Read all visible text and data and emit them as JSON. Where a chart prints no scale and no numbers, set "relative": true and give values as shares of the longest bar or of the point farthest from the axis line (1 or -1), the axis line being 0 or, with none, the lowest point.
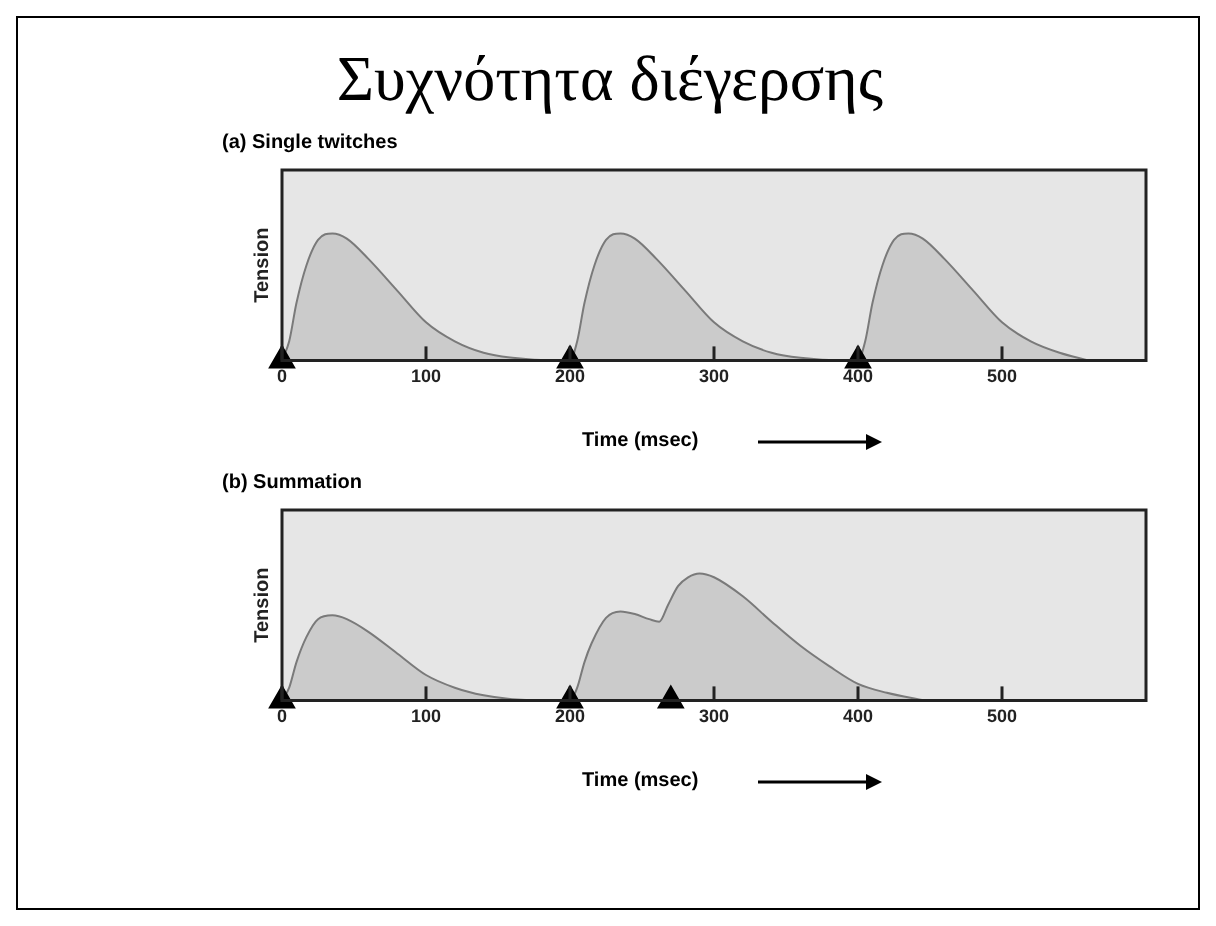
{
  "chart_data": [
    {
      "type": "area",
      "title": "Συχνότητα διέγερσης",
      "subtitle": "(a) Single twitches",
      "xlabel": "Time (msec)",
      "ylabel": "Tension",
      "relative": true,
      "legend": false,
      "grid": false,
      "xlim": [
        0,
        600
      ],
      "xticks": [
        0,
        100,
        200,
        300,
        400,
        500
      ],
      "x": [
        0,
        5,
        10,
        17,
        25,
        35,
        45,
        60,
        80,
        100,
        120,
        140,
        160,
        190,
        200,
        205,
        210,
        217,
        225,
        235,
        245,
        260,
        280,
        300,
        320,
        340,
        360,
        390,
        400,
        405,
        410,
        417,
        425,
        435,
        445,
        460,
        480,
        500,
        520,
        540,
        560
      ],
      "series": [
        {
          "color": "#7a7a7a",
          "values": [
            0,
            0.15,
            0.45,
            0.75,
            0.95,
            1,
            0.96,
            0.8,
            0.55,
            0.3,
            0.15,
            0.06,
            0.02,
            0,
            0,
            0.15,
            0.45,
            0.75,
            0.95,
            1,
            0.96,
            0.8,
            0.55,
            0.3,
            0.15,
            0.06,
            0.02,
            0,
            0,
            0.15,
            0.45,
            0.75,
            0.95,
            1,
            0.96,
            0.8,
            0.55,
            0.3,
            0.15,
            0.06,
            0
          ]
        },
        {
          "type": "scatter",
          "marker": "triangle",
          "color": "#000000",
          "x": [
            0,
            200,
            400
          ],
          "values": [
            0,
            0,
            0
          ]
        }
      ],
      "marker": "none"
    },
    {
      "type": "area",
      "subtitle": "(b) Summation",
      "xlabel": "Time (msec)",
      "ylabel": "Tension",
      "relative": true,
      "legend": false,
      "grid": false,
      "xlim": [
        0,
        600
      ],
      "xticks": [
        0,
        100,
        200,
        300,
        400,
        500
      ],
      "x": [
        0,
        5,
        10,
        17,
        25,
        35,
        45,
        60,
        80,
        100,
        120,
        140,
        160,
        190,
        200,
        205,
        210,
        215,
        225,
        235,
        245,
        255,
        262,
        268,
        275,
        282,
        290,
        300,
        320,
        340,
        360,
        380,
        400,
        420,
        446
      ],
      "series": [
        {
          "color": "#7a7a7a",
          "values": [
            0,
            0.1,
            0.3,
            0.5,
            0.64,
            0.67,
            0.64,
            0.54,
            0.37,
            0.2,
            0.1,
            0.04,
            0.01,
            0,
            0,
            0.1,
            0.3,
            0.45,
            0.65,
            0.7,
            0.68,
            0.64,
            0.62,
            0.75,
            0.9,
            0.97,
            1,
            0.97,
            0.82,
            0.62,
            0.43,
            0.27,
            0.13,
            0.06,
            0
          ]
        },
        {
          "type": "scatter",
          "marker": "triangle",
          "color": "#000000",
          "x": [
            0,
            200,
            270
          ],
          "values": [
            0,
            0,
            0
          ]
        }
      ],
      "marker": "none"
    }
  ]
}
